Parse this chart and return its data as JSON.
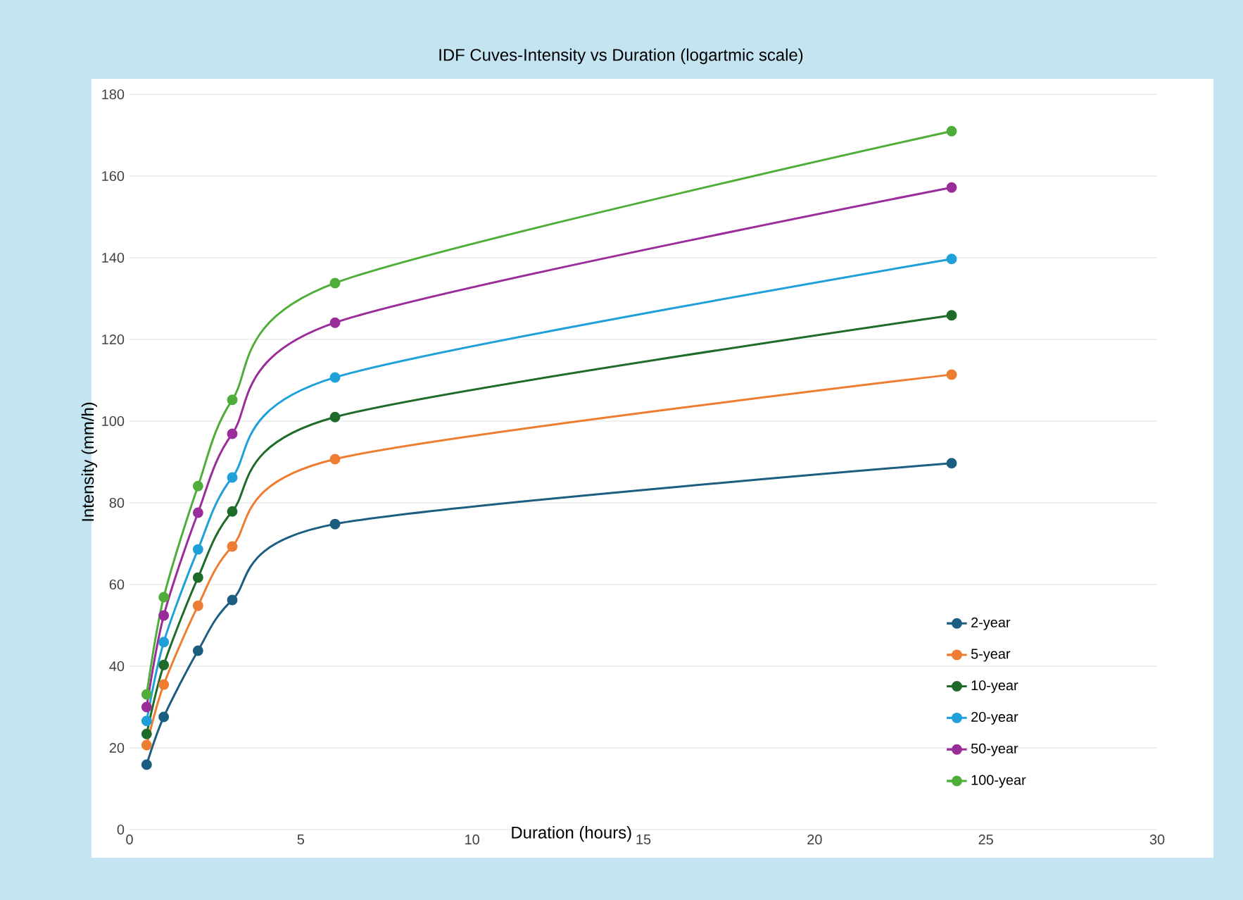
{
  "chart_data": {
    "type": "line",
    "title": "IDF Cuves-Intensity vs Duration (logartmic scale)",
    "xlabel": "Duration (hours)",
    "ylabel": "Intensity (mm/h)",
    "xlim": [
      0,
      30
    ],
    "xticks": [
      0,
      5,
      10,
      15,
      20,
      25,
      30
    ],
    "ylim": [
      0,
      180
    ],
    "yticks": [
      0,
      20,
      40,
      60,
      80,
      100,
      120,
      140,
      160,
      180
    ],
    "grid": "y",
    "legend": "bottom right",
    "marker": "circle",
    "line_style": "solid",
    "x": [
      0.5,
      1,
      2,
      3,
      6,
      24
    ],
    "series": [
      {
        "name": "2-year",
        "color": "#1b5e80",
        "values": [
          15.9,
          27.6,
          43.8,
          56.2,
          74.8,
          89.7
        ]
      },
      {
        "name": "5-year",
        "color": "#ed7d31",
        "values": [
          20.7,
          35.5,
          54.8,
          69.3,
          90.7,
          111.4
        ]
      },
      {
        "name": "10-year",
        "color": "#1e6b2a",
        "values": [
          23.4,
          40.3,
          61.7,
          77.9,
          101,
          125.9
        ]
      },
      {
        "name": "20-year",
        "color": "#1fa0d8",
        "values": [
          26.6,
          45.9,
          68.6,
          86.2,
          110.7,
          139.7
        ]
      },
      {
        "name": "50-year",
        "color": "#9b2d9b",
        "values": [
          30,
          52.4,
          77.6,
          96.9,
          124.1,
          157.2
        ]
      },
      {
        "name": "100-year",
        "color": "#4fad3a",
        "values": [
          33.1,
          56.9,
          84.1,
          105.2,
          133.8,
          171
        ]
      }
    ]
  }
}
